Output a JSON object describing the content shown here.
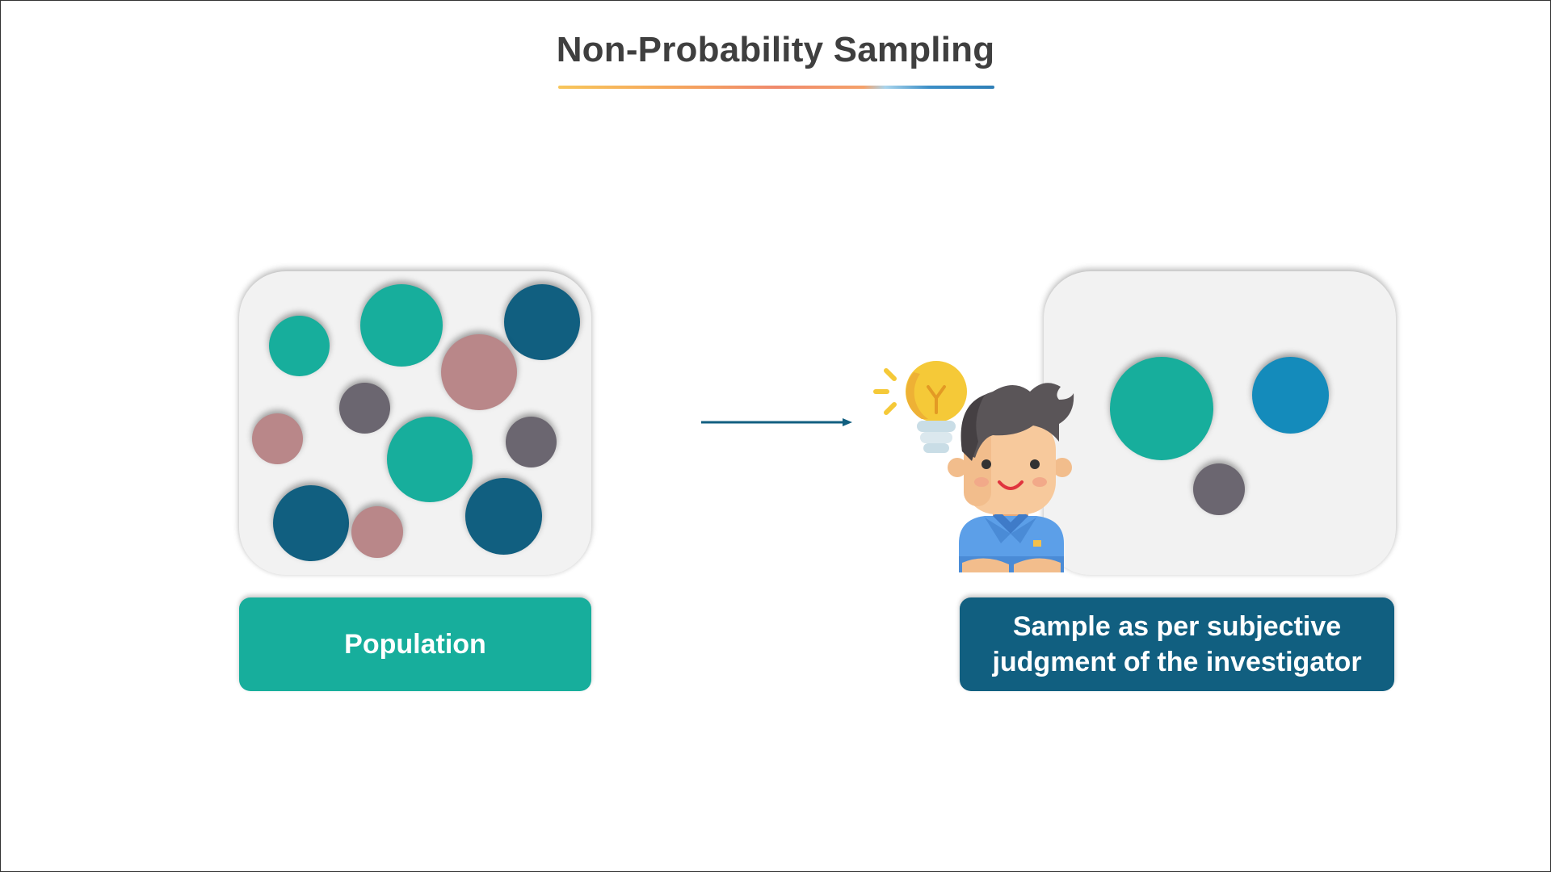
{
  "title": "Non-Probability Sampling",
  "population_label": "Population",
  "sample_label": "Sample as per subjective judgment of the investigator",
  "colors": {
    "teal": "#17ae9c",
    "navy": "#115f80",
    "rose": "#b98789",
    "slate": "#6b6670",
    "blue": "#148bbb",
    "panel": "#f2f2f2"
  },
  "icons": {
    "flow_arrow": "arrow-right-icon",
    "investigator": "person-with-lightbulb-icon"
  }
}
